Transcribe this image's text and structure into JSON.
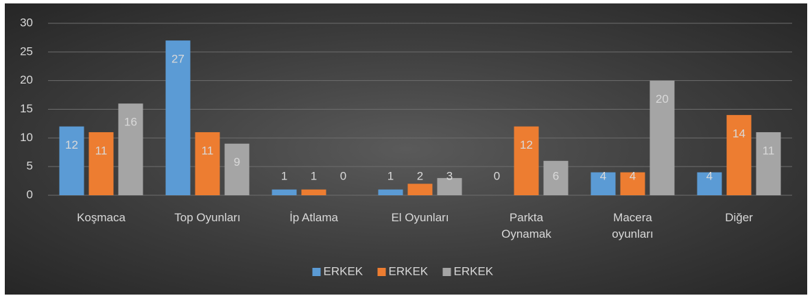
{
  "chart_data": {
    "type": "bar",
    "categories": [
      "Koşmaca",
      "Top Oyunları",
      "İp Atlama",
      "El Oyunları",
      "Parkta Oynamak",
      "Macera oyunları",
      "Diğer"
    ],
    "series": [
      {
        "name": "ERKEK",
        "color": "#5b9bd5",
        "values": [
          12,
          27,
          1,
          1,
          0,
          4,
          4
        ]
      },
      {
        "name": "ERKEK",
        "color": "#ed7d31",
        "values": [
          11,
          11,
          1,
          2,
          12,
          4,
          14
        ]
      },
      {
        "name": "ERKEK",
        "color": "#a5a5a5",
        "values": [
          16,
          9,
          0,
          3,
          6,
          20,
          11
        ]
      }
    ],
    "ylim": [
      0,
      30
    ],
    "yticks": [
      0,
      5,
      10,
      15,
      20,
      25,
      30
    ],
    "grid": true,
    "legend": "bottom",
    "data_labels": true
  }
}
